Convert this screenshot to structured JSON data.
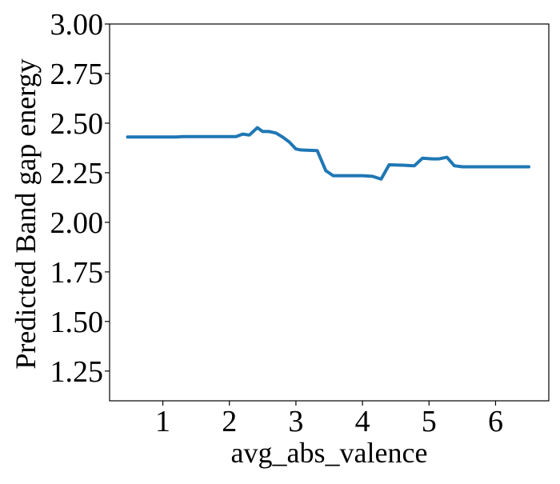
{
  "chart_data": {
    "type": "line",
    "title": "",
    "xlabel": "avg_abs_valence",
    "ylabel": "Predicted Band gap energy",
    "xlim": [
      0.2,
      6.8
    ],
    "ylim": [
      1.1,
      3.0
    ],
    "x_ticks": [
      1,
      2,
      3,
      4,
      5,
      6
    ],
    "y_ticks": [
      1.25,
      1.5,
      1.75,
      2.0,
      2.25,
      2.5,
      2.75,
      3.0
    ],
    "x_tick_labels": [
      "1",
      "2",
      "3",
      "4",
      "5",
      "6"
    ],
    "y_tick_labels": [
      "1.25",
      "1.50",
      "1.75",
      "2.00",
      "2.25",
      "2.50",
      "2.75",
      "3.00"
    ],
    "grid": false,
    "legend": "none",
    "series": [
      {
        "color": "#1f77b4",
        "x": [
          0.47,
          1.0,
          1.2,
          1.3,
          2.0,
          2.1,
          2.2,
          2.3,
          2.42,
          2.5,
          2.6,
          2.7,
          2.8,
          2.9,
          3.0,
          3.07,
          3.2,
          3.32,
          3.45,
          3.56,
          3.7,
          4.0,
          4.15,
          4.28,
          4.4,
          4.6,
          4.78,
          4.9,
          5.05,
          5.15,
          5.27,
          5.38,
          5.5,
          6.0,
          6.5
        ],
        "y": [
          2.43,
          2.43,
          2.43,
          2.432,
          2.432,
          2.432,
          2.445,
          2.44,
          2.477,
          2.458,
          2.458,
          2.45,
          2.43,
          2.405,
          2.37,
          2.365,
          2.363,
          2.362,
          2.26,
          2.235,
          2.235,
          2.235,
          2.232,
          2.218,
          2.29,
          2.288,
          2.285,
          2.323,
          2.32,
          2.32,
          2.328,
          2.285,
          2.28,
          2.28,
          2.28
        ]
      }
    ]
  }
}
